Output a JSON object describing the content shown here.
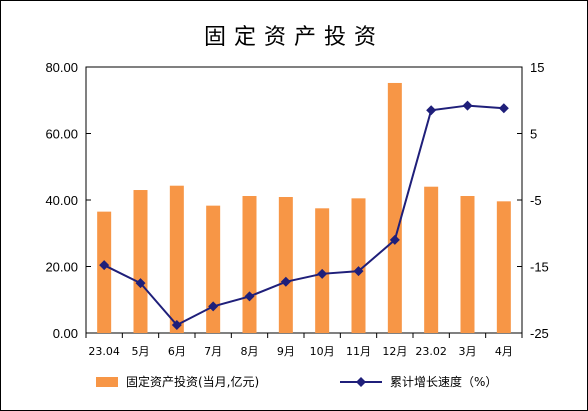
{
  "chart_data": {
    "type": "bar",
    "title": "固定资产投资",
    "categories": [
      "23.04",
      "5月",
      "6月",
      "7月",
      "8月",
      "9月",
      "10月",
      "11月",
      "12月",
      "23.02",
      "3月",
      "4月"
    ],
    "series": [
      {
        "name": "固定资产投资(当月,亿元)",
        "type": "bar",
        "axis": "left",
        "color": "#F79646",
        "values": [
          36.5,
          43.0,
          44.3,
          38.3,
          41.2,
          40.9,
          37.5,
          40.5,
          75.2,
          44.0,
          41.2,
          39.6
        ]
      },
      {
        "name": "累计增长速度（%）",
        "type": "line",
        "axis": "right",
        "color": "#1F1F7A",
        "values": [
          -14.8,
          -17.5,
          -23.8,
          -21.0,
          -19.5,
          -17.3,
          -16.1,
          -15.7,
          -11.0,
          8.5,
          9.2,
          8.8
        ]
      }
    ],
    "y_left": {
      "min": 0,
      "max": 80,
      "step": 20,
      "ticks": [
        "0.00",
        "20.00",
        "40.00",
        "60.00",
        "80.00"
      ]
    },
    "y_right": {
      "min": -25,
      "max": 15,
      "step": 10,
      "ticks": [
        "-25",
        "-15",
        "-5",
        "5",
        "15"
      ]
    },
    "grid": false,
    "legend_position": "bottom"
  }
}
